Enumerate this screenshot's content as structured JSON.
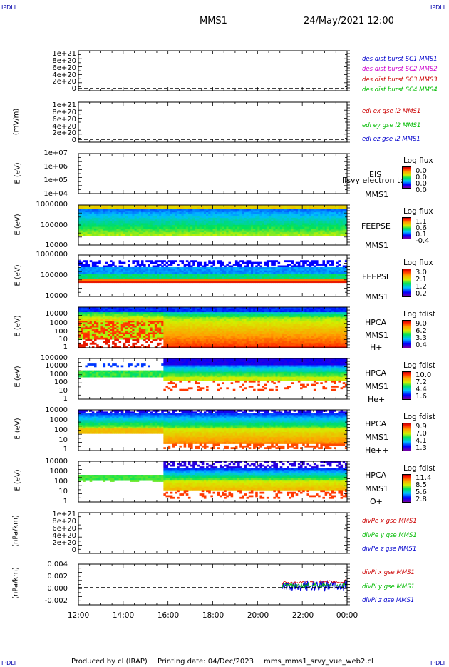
{
  "corners": {
    "tl": "IPDLI",
    "tr": "IPDLI",
    "bl": "IPDLI",
    "br": "IPDLI"
  },
  "header": {
    "mission": "MMS1",
    "datetime": "24/May/2021 12:00"
  },
  "footer": {
    "produced_by": "Produced by cl (IRAP)",
    "printing_date": "Printing date: 04/Dec/2023",
    "script": "mms_mms1_srvy_vue_web2.cl"
  },
  "chart_data": {
    "type": "line",
    "x_axis": {
      "ticks": [
        "12:00",
        "14:00",
        "16:00",
        "18:00",
        "20:00",
        "22:00",
        "00:00"
      ]
    },
    "panels": [
      {
        "id": "p1",
        "type": "line",
        "ylabel": "",
        "yticks": [
          "1e+21",
          "8e+20",
          "6e+20",
          "4e+20",
          "2e+20",
          "0"
        ],
        "legend": [
          {
            "text": "des dist burst SC1 MMS1",
            "color": "#0000cc"
          },
          {
            "text": "des dist burst SC2 MMS2",
            "color": "#cc00cc"
          },
          {
            "text": "des dist burst SC3 MMS3",
            "color": "#cc0000"
          },
          {
            "text": "des dist burst SC4 MMS4",
            "color": "#00bb00"
          }
        ]
      },
      {
        "id": "p2",
        "type": "line",
        "ylabel": "(mV/m)",
        "yticks": [
          "1e+21",
          "8e+20",
          "6e+20",
          "4e+20",
          "2e+20",
          "0"
        ],
        "legend": [
          {
            "text": "edi ex gse l2 MMS1",
            "color": "#cc0000"
          },
          {
            "text": "edi ey gse l2 MMS1",
            "color": "#00bb00"
          },
          {
            "text": "edi ez gse l2 MMS1",
            "color": "#0000cc"
          }
        ]
      },
      {
        "id": "p3",
        "type": "heatmap",
        "ylabel": "E (eV)",
        "yticks": [
          "1e+07",
          "1e+06",
          "1e+05",
          "1e+04"
        ],
        "right_labels": [
          "EIS",
          "MMS1"
        ],
        "overlay_text": "Ilsvy electron to",
        "colorbar": {
          "title": "Log flux",
          "ticks": [
            "0.0",
            "0.0",
            "0.0",
            "0.0"
          ]
        }
      },
      {
        "id": "p4",
        "type": "heatmap",
        "ylabel": "E (eV)",
        "yticks": [
          "1000000",
          "100000",
          "10000"
        ],
        "right_labels": [
          "FEEPSE",
          "MMS1"
        ],
        "colorbar": {
          "title": "Log flux",
          "ticks": [
            "1.1",
            "0.6",
            "0.1",
            "-0.4"
          ]
        }
      },
      {
        "id": "p5",
        "type": "heatmap",
        "ylabel": "E (eV)",
        "yticks": [
          "1000000",
          "100000",
          "10000"
        ],
        "right_labels": [
          "FEEPSI",
          "MMS1"
        ],
        "colorbar": {
          "title": "Log flux",
          "ticks": [
            "3.0",
            "2.1",
            "1.2",
            "0.2"
          ]
        }
      },
      {
        "id": "p6",
        "type": "heatmap",
        "ylabel": "E (eV)",
        "yticks": [
          "10000",
          "1000",
          "100",
          "10",
          "1"
        ],
        "right_labels": [
          "HPCA",
          "MMS1",
          "H+"
        ],
        "colorbar": {
          "title": "Log fdist",
          "ticks": [
            "9.0",
            "6.2",
            "3.3",
            "0.4"
          ]
        }
      },
      {
        "id": "p7",
        "type": "heatmap",
        "ylabel": "E (eV)",
        "yticks": [
          "100000",
          "10000",
          "1000",
          "100",
          "10",
          "1"
        ],
        "right_labels": [
          "HPCA",
          "MMS1",
          "He+"
        ],
        "colorbar": {
          "title": "Log fdist",
          "ticks": [
            "10.0",
            "7.2",
            "4.4",
            "1.6"
          ]
        }
      },
      {
        "id": "p8",
        "type": "heatmap",
        "ylabel": "E (eV)",
        "yticks": [
          "10000",
          "1000",
          "100",
          "10",
          "1"
        ],
        "right_labels": [
          "HPCA",
          "MMS1",
          "He++"
        ],
        "colorbar": {
          "title": "Log fdist",
          "ticks": [
            "9.9",
            "7.0",
            "4.1",
            "1.3"
          ]
        }
      },
      {
        "id": "p9",
        "type": "heatmap",
        "ylabel": "E (eV)",
        "yticks": [
          "10000",
          "1000",
          "100",
          "10",
          "1"
        ],
        "right_labels": [
          "HPCA",
          "MMS1",
          "O+"
        ],
        "colorbar": {
          "title": "Log fdist",
          "ticks": [
            "11.4",
            "8.5",
            "5.6",
            "2.8"
          ]
        }
      },
      {
        "id": "p10",
        "type": "line",
        "ylabel": "(nPa/km)",
        "yticks": [
          "1e+21",
          "8e+20",
          "6e+20",
          "4e+20",
          "2e+20",
          "0"
        ],
        "legend": [
          {
            "text": "divPe x gse MMS1",
            "color": "#cc0000"
          },
          {
            "text": "divPe y gse MMS1",
            "color": "#00bb00"
          },
          {
            "text": "divPe z gse MMS1",
            "color": "#0000cc"
          }
        ]
      },
      {
        "id": "p11",
        "type": "line",
        "ylabel": "(nPa/km)",
        "yticks": [
          "0.004",
          "0.002",
          "0.000",
          "-0.002"
        ],
        "legend": [
          {
            "text": "divPi x gse MMS1",
            "color": "#cc0000"
          },
          {
            "text": "divPi y gse MMS1",
            "color": "#00bb00"
          },
          {
            "text": "divPi z gse MMS1",
            "color": "#0000cc"
          }
        ]
      }
    ]
  }
}
